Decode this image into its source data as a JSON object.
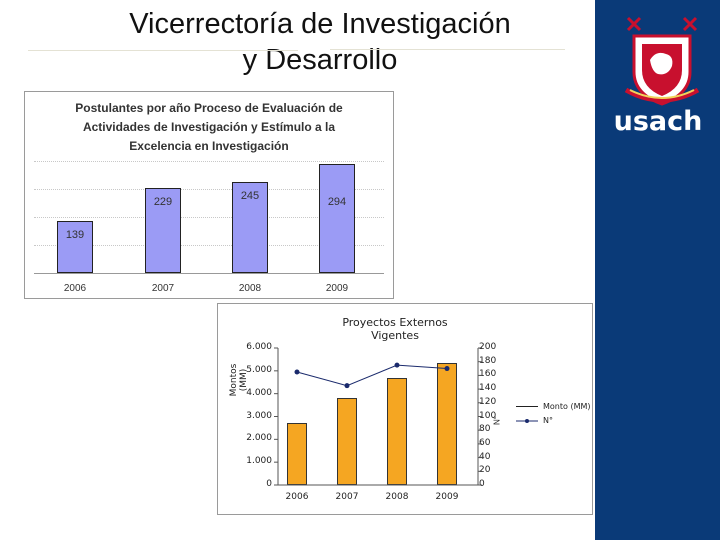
{
  "slide": {
    "title_line1": "Vicerrectoría de Investigación",
    "title_line2": "y Desarrollo"
  },
  "brand": {
    "logo_text": "usach",
    "panel_color": "#0a3a78"
  },
  "chart_data": [
    {
      "type": "bar",
      "title": "Postulantes por año Proceso de Evaluación de Actividades de Investigación y Estímulo a la Excelencia en Investigación",
      "title_lines": [
        "Postulantes por año Proceso de Evaluación de",
        "Actividades de Investigación y Estímulo a la",
        "Excelencia en Investigación"
      ],
      "categories": [
        "2006",
        "2007",
        "2008",
        "2009"
      ],
      "values": [
        139,
        229,
        245,
        294
      ],
      "value_labels": [
        "139",
        "229",
        "245",
        "294"
      ],
      "ylim": [
        0,
        350
      ],
      "grid": true,
      "bar_color": "#9b9bf5"
    },
    {
      "type": "bar",
      "title_lines": [
        "Proyectos Externos",
        "Vigentes"
      ],
      "categories": [
        "2006",
        "2007",
        "2008",
        "2009"
      ],
      "series": [
        {
          "name": "Monto (MM)",
          "type": "bar",
          "axis": "left",
          "values": [
            2700,
            3800,
            4700,
            5350
          ],
          "color": "#f5a622"
        },
        {
          "name": "N°",
          "type": "line",
          "axis": "right",
          "values": [
            165,
            145,
            175,
            170
          ],
          "color": "#1a2a6c"
        }
      ],
      "ylabel_left": "Montos (MM)",
      "ylabel_right": "N°",
      "ylim_left": [
        0,
        6000
      ],
      "ylim_right": [
        0,
        200
      ],
      "yticks_left": [
        "0",
        "1.000",
        "2.000",
        "3.000",
        "4.000",
        "5.000",
        "6.000"
      ],
      "yticks_right": [
        "0",
        "20",
        "40",
        "60",
        "80",
        "100",
        "120",
        "140",
        "160",
        "180",
        "200"
      ],
      "legend_position": "right"
    }
  ]
}
